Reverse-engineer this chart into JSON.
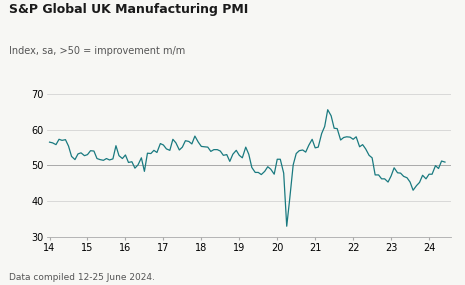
{
  "title": "S&P Global UK Manufacturing PMI",
  "subtitle": "Index, sa, >50 = improvement m/m",
  "footnote": "Data compiled 12-25 June 2024.",
  "line_color": "#1a7a80",
  "background_color": "#f7f7f4",
  "ylim": [
    30,
    70
  ],
  "yticks": [
    30,
    40,
    50,
    60,
    70
  ],
  "xlim": [
    2013.92,
    2024.58
  ],
  "xticks": [
    14,
    15,
    16,
    17,
    18,
    19,
    20,
    21,
    22,
    23,
    24
  ],
  "hline_y": 50,
  "data": [
    [
      2014.0,
      56.5
    ],
    [
      2014.08,
      56.3
    ],
    [
      2014.17,
      55.8
    ],
    [
      2014.25,
      57.3
    ],
    [
      2014.33,
      57.0
    ],
    [
      2014.42,
      57.2
    ],
    [
      2014.5,
      55.4
    ],
    [
      2014.58,
      52.5
    ],
    [
      2014.67,
      51.6
    ],
    [
      2014.75,
      53.2
    ],
    [
      2014.83,
      53.5
    ],
    [
      2014.92,
      52.7
    ],
    [
      2015.0,
      53.0
    ],
    [
      2015.08,
      54.1
    ],
    [
      2015.17,
      54.0
    ],
    [
      2015.25,
      51.9
    ],
    [
      2015.33,
      51.6
    ],
    [
      2015.42,
      51.4
    ],
    [
      2015.5,
      51.9
    ],
    [
      2015.58,
      51.5
    ],
    [
      2015.67,
      51.8
    ],
    [
      2015.75,
      55.5
    ],
    [
      2015.83,
      52.7
    ],
    [
      2015.92,
      51.9
    ],
    [
      2016.0,
      52.9
    ],
    [
      2016.08,
      50.8
    ],
    [
      2016.17,
      51.0
    ],
    [
      2016.25,
      49.2
    ],
    [
      2016.33,
      50.1
    ],
    [
      2016.42,
      52.1
    ],
    [
      2016.5,
      48.3
    ],
    [
      2016.58,
      53.4
    ],
    [
      2016.67,
      53.3
    ],
    [
      2016.75,
      54.2
    ],
    [
      2016.83,
      53.6
    ],
    [
      2016.92,
      56.1
    ],
    [
      2017.0,
      55.7
    ],
    [
      2017.08,
      54.6
    ],
    [
      2017.17,
      54.2
    ],
    [
      2017.25,
      57.3
    ],
    [
      2017.33,
      56.3
    ],
    [
      2017.42,
      54.3
    ],
    [
      2017.5,
      55.1
    ],
    [
      2017.58,
      56.9
    ],
    [
      2017.67,
      56.7
    ],
    [
      2017.75,
      56.0
    ],
    [
      2017.83,
      58.2
    ],
    [
      2017.92,
      56.5
    ],
    [
      2018.0,
      55.3
    ],
    [
      2018.08,
      55.2
    ],
    [
      2018.17,
      55.1
    ],
    [
      2018.25,
      53.9
    ],
    [
      2018.33,
      54.4
    ],
    [
      2018.42,
      54.4
    ],
    [
      2018.5,
      54.0
    ],
    [
      2018.58,
      52.8
    ],
    [
      2018.67,
      53.0
    ],
    [
      2018.75,
      51.1
    ],
    [
      2018.83,
      53.1
    ],
    [
      2018.92,
      54.2
    ],
    [
      2019.0,
      52.8
    ],
    [
      2019.08,
      52.1
    ],
    [
      2019.17,
      55.1
    ],
    [
      2019.25,
      53.1
    ],
    [
      2019.33,
      49.4
    ],
    [
      2019.42,
      48.0
    ],
    [
      2019.5,
      48.0
    ],
    [
      2019.58,
      47.4
    ],
    [
      2019.67,
      48.3
    ],
    [
      2019.75,
      49.6
    ],
    [
      2019.83,
      48.9
    ],
    [
      2019.92,
      47.5
    ],
    [
      2020.0,
      51.7
    ],
    [
      2020.08,
      51.7
    ],
    [
      2020.17,
      47.8
    ],
    [
      2020.25,
      32.9
    ],
    [
      2020.33,
      40.7
    ],
    [
      2020.42,
      50.1
    ],
    [
      2020.5,
      53.3
    ],
    [
      2020.58,
      54.1
    ],
    [
      2020.67,
      54.3
    ],
    [
      2020.75,
      53.7
    ],
    [
      2020.83,
      55.6
    ],
    [
      2020.92,
      57.3
    ],
    [
      2021.0,
      54.9
    ],
    [
      2021.08,
      55.1
    ],
    [
      2021.17,
      58.9
    ],
    [
      2021.25,
      60.9
    ],
    [
      2021.33,
      65.6
    ],
    [
      2021.42,
      63.9
    ],
    [
      2021.5,
      60.4
    ],
    [
      2021.58,
      60.3
    ],
    [
      2021.67,
      57.1
    ],
    [
      2021.75,
      57.8
    ],
    [
      2021.83,
      58.0
    ],
    [
      2021.92,
      57.9
    ],
    [
      2022.0,
      57.3
    ],
    [
      2022.08,
      58.0
    ],
    [
      2022.17,
      55.2
    ],
    [
      2022.25,
      55.8
    ],
    [
      2022.33,
      54.6
    ],
    [
      2022.42,
      52.8
    ],
    [
      2022.5,
      52.1
    ],
    [
      2022.58,
      47.3
    ],
    [
      2022.67,
      47.3
    ],
    [
      2022.75,
      46.2
    ],
    [
      2022.83,
      46.2
    ],
    [
      2022.92,
      45.3
    ],
    [
      2023.0,
      47.0
    ],
    [
      2023.08,
      49.3
    ],
    [
      2023.17,
      47.9
    ],
    [
      2023.25,
      47.8
    ],
    [
      2023.33,
      46.9
    ],
    [
      2023.42,
      46.5
    ],
    [
      2023.5,
      45.3
    ],
    [
      2023.58,
      43.0
    ],
    [
      2023.67,
      44.3
    ],
    [
      2023.75,
      45.2
    ],
    [
      2023.83,
      47.2
    ],
    [
      2023.92,
      46.2
    ],
    [
      2024.0,
      47.5
    ],
    [
      2024.08,
      47.5
    ],
    [
      2024.17,
      49.9
    ],
    [
      2024.25,
      49.1
    ],
    [
      2024.33,
      51.2
    ],
    [
      2024.42,
      50.9
    ]
  ]
}
